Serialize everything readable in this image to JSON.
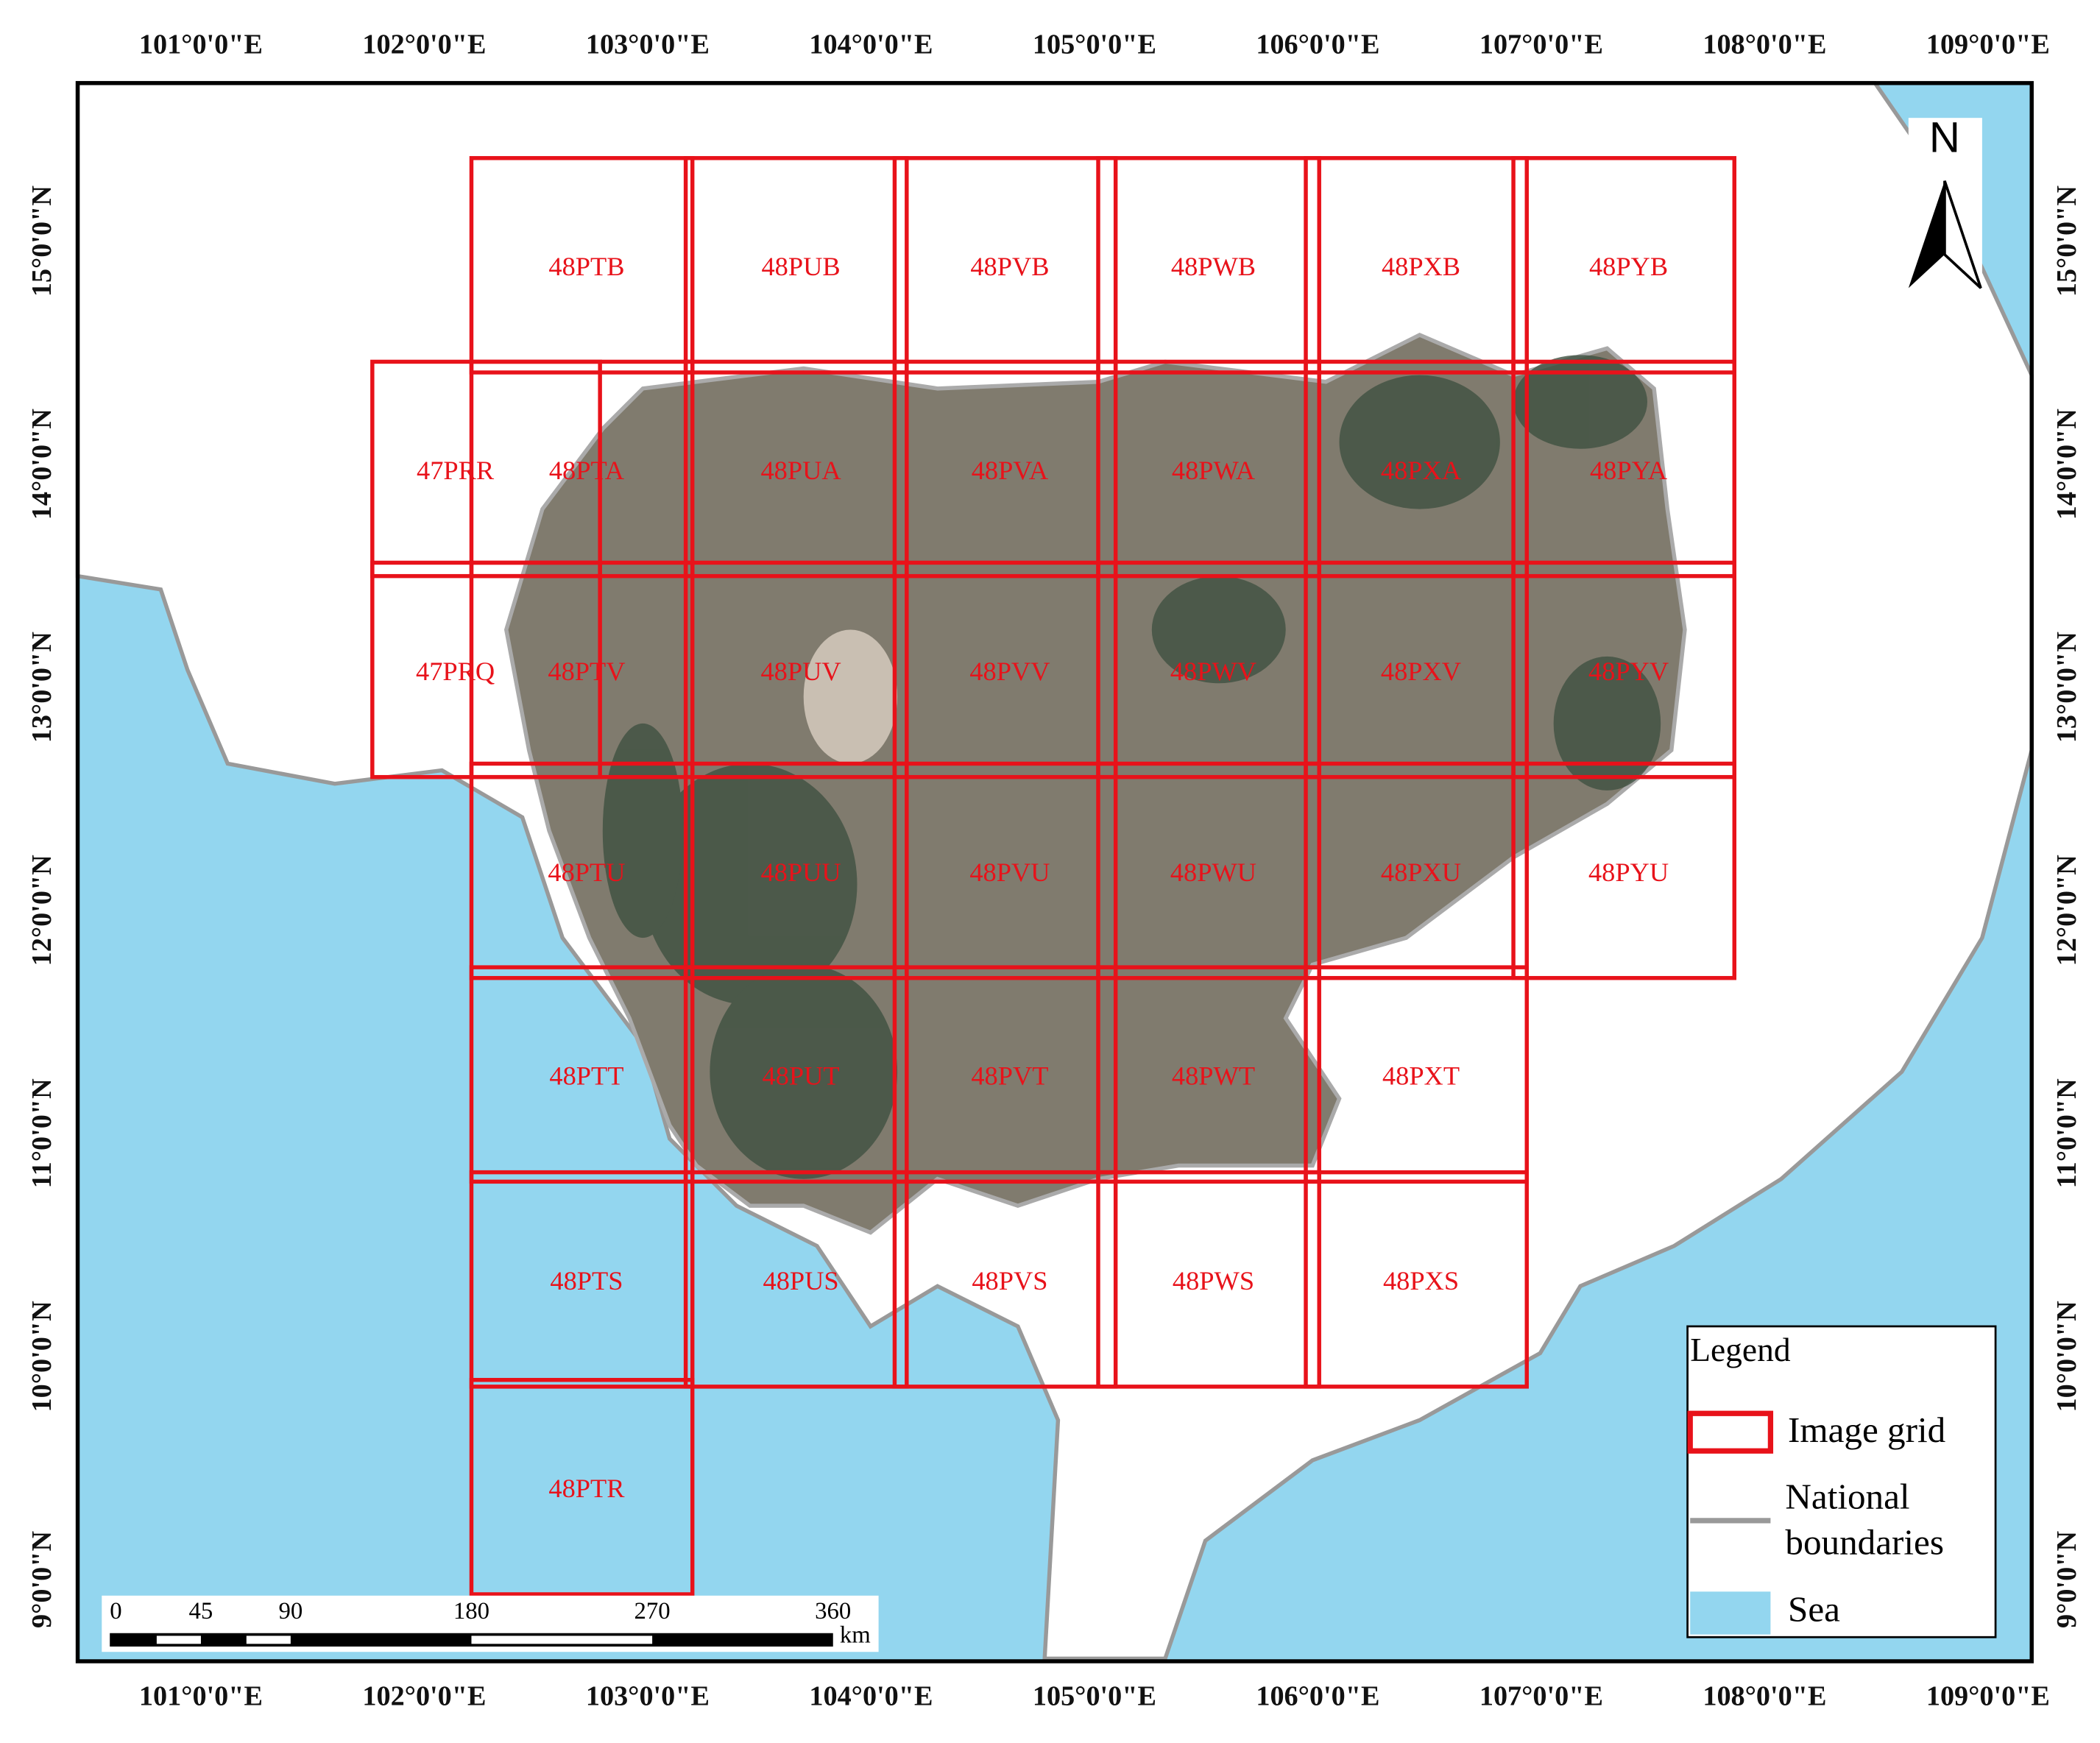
{
  "map": {
    "lon_labels": [
      "101°0'0\"E",
      "102°0'0\"E",
      "103°0'0\"E",
      "104°0'0\"E",
      "105°0'0\"E",
      "106°0'0\"E",
      "107°0'0\"E",
      "108°0'0\"E",
      "109°0'0\"E"
    ],
    "lat_labels": [
      "15°0'0\"N",
      "14°0'0\"N",
      "13°0'0\"N",
      "12°0'0\"N",
      "11°0'0\"N",
      "10°0'0\"N",
      "9°0'0\"N"
    ],
    "tiles": [
      [
        "48PTB",
        "48PUB",
        "48PVB",
        "48PWB",
        "48PXB",
        "48PYB"
      ],
      [
        "47PRR",
        "48PTA",
        "48PUA",
        "48PVA",
        "48PWA",
        "48PXA",
        "48PYA"
      ],
      [
        "47PRQ",
        "48PTV",
        "48PUV",
        "48PVV",
        "48PWV",
        "48PXV",
        "48PYV"
      ],
      [
        "48PTU",
        "48PUU",
        "48PVU",
        "48PWU",
        "48PXU",
        "48PYU"
      ],
      [
        "48PTT",
        "48PUT",
        "48PVT",
        "48PWT",
        "48PXT"
      ],
      [
        "48PTS",
        "48PUS",
        "48PVS",
        "48PWS",
        "48PXS"
      ],
      [
        "48PTR"
      ]
    ],
    "north": "N",
    "legend": {
      "title": "Legend",
      "items": [
        "Image grid",
        "National boundaries",
        "Sea"
      ]
    },
    "scale_bar": {
      "labels": [
        "0",
        "45",
        "90",
        "180",
        "270",
        "360"
      ],
      "unit": "km"
    }
  }
}
